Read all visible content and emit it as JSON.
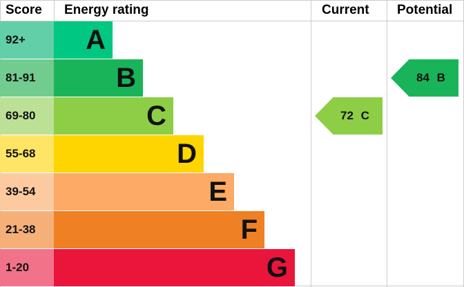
{
  "chart_data": {
    "type": "table",
    "headers": {
      "score": "Score",
      "rating": "Energy rating",
      "current": "Current",
      "potential": "Potential"
    },
    "bands": [
      {
        "score": "92+",
        "letter": "A",
        "color": "#00c781",
        "score_color": "#63cfa9"
      },
      {
        "score": "81-91",
        "letter": "B",
        "color": "#19b459",
        "score_color": "#72cc8f"
      },
      {
        "score": "69-80",
        "letter": "C",
        "color": "#8dce46",
        "score_color": "#bce196"
      },
      {
        "score": "55-68",
        "letter": "D",
        "color": "#ffd500",
        "score_color": "#ffe566"
      },
      {
        "score": "39-54",
        "letter": "E",
        "color": "#fcaa65",
        "score_color": "#fdcaa0"
      },
      {
        "score": "21-38",
        "letter": "F",
        "color": "#ef8023",
        "score_color": "#f5b07a"
      },
      {
        "score": "1-20",
        "letter": "G",
        "color": "#e9153b",
        "score_color": "#f27389"
      }
    ],
    "current": {
      "value": 72,
      "letter": "C",
      "label": "72 C",
      "color": "#8dce46"
    },
    "potential": {
      "value": 84,
      "letter": "B",
      "label": "84 B",
      "color": "#19b459"
    }
  }
}
